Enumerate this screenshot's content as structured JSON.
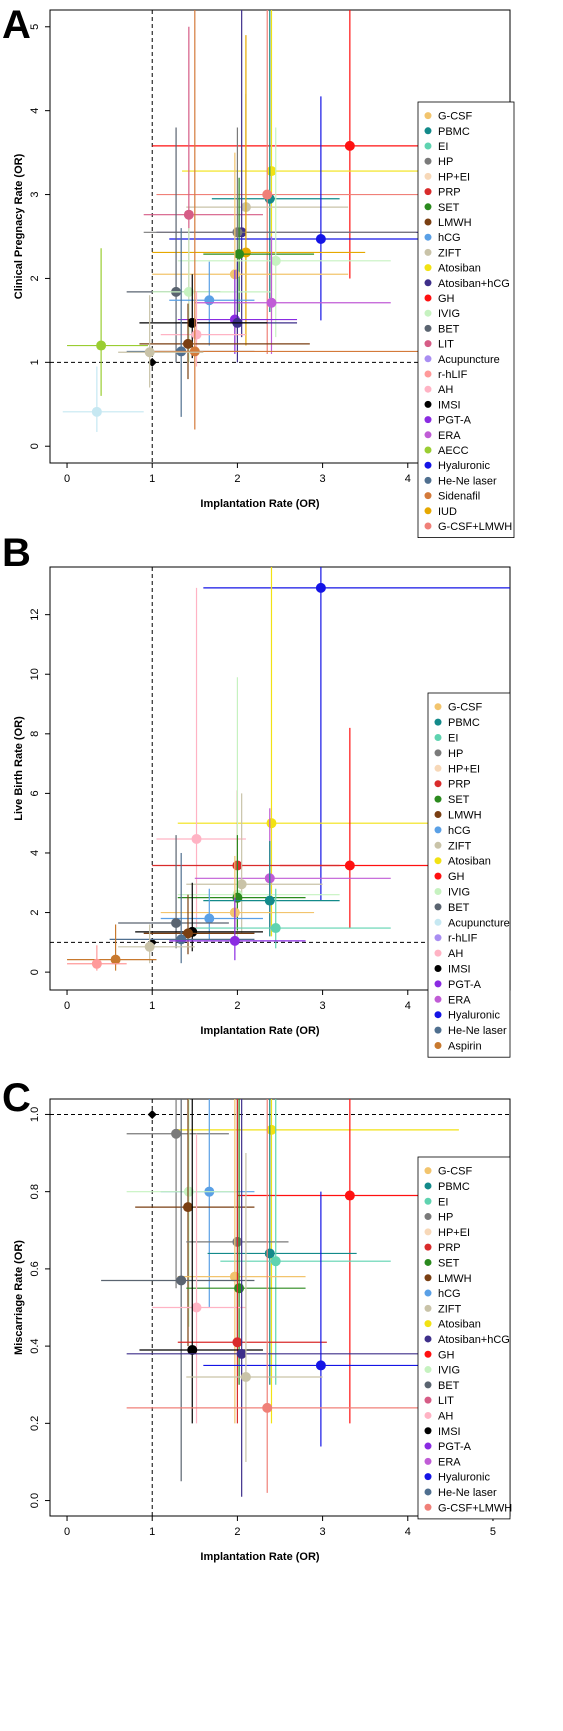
{
  "colors": {
    "G-CSF": "#f2c46d",
    "PBMC": "#138a8a",
    "EI": "#5fd3b0",
    "HP": "#7a7a7a",
    "HP+EI": "#f7d8b8",
    "PRP": "#d92b2b",
    "SET": "#2b8a1e",
    "LMWH": "#7a3f12",
    "hCG": "#5aa0e6",
    "ZIFT": "#c9c3a8",
    "Atosiban": "#f2e213",
    "Atosiban+hCG": "#3e2f8a",
    "GH": "#ff1010",
    "IVIG": "#c6f2c0",
    "BET": "#5a6470",
    "LIT": "#d65c86",
    "Acupuncture": "#c6e8f2",
    "Acupuncture-legend": "#a98ef2",
    "r-hLIF": "#ff9a9a",
    "r-hLIF-B": "#a98ef2",
    "AH": "#ffb3c4",
    "IMSI": "#000000",
    "PGT-A": "#8a2be2",
    "ERA": "#c05cd6",
    "AECC": "#9acd32",
    "Hyaluronic": "#1414e6",
    "He-Ne laser": "#4f6f8f",
    "Sidenafil": "#d47a3a",
    "IUD": "#e6a800",
    "G-CSF+LMWH": "#f08078",
    "Aspirin": "#c8792e",
    "Control": "#000000"
  },
  "chart_data": [
    {
      "type": "scatter",
      "panel_label": "A",
      "xlabel": "Implantation Rate (OR)",
      "ylabel": "Clinical Pregnacy Rate (OR)",
      "xlim": [
        -0.2,
        5.2
      ],
      "ylim": [
        -0.2,
        5.2
      ],
      "xticks": [
        "0",
        "1",
        "2",
        "3",
        "4",
        "5"
      ],
      "yticks": [
        "0",
        "1",
        "2",
        "3",
        "4",
        "5"
      ],
      "reference_lines": {
        "x": 1,
        "y": 1
      },
      "legend": [
        "G-CSF",
        "PBMC",
        "EI",
        "HP",
        "HP+EI",
        "PRP",
        "SET",
        "LMWH",
        "hCG",
        "ZIFT",
        "Atosiban",
        "Atosiban+hCG",
        "GH",
        "IVIG",
        "BET",
        "LIT",
        "Acupuncture",
        "r-hLIF",
        "AH",
        "IMSI",
        "PGT-A",
        "ERA",
        "AECC",
        "Hyaluronic",
        "He-Ne laser",
        "Sidenafil",
        "IUD",
        "G-CSF+LMWH"
      ],
      "legend_colors": [
        "G-CSF",
        "PBMC",
        "EI",
        "HP",
        "HP+EI",
        "PRP",
        "SET",
        "LMWH",
        "hCG",
        "ZIFT",
        "Atosiban",
        "Atosiban+hCG",
        "GH",
        "IVIG",
        "BET",
        "LIT",
        "Acupuncture-legend",
        "r-hLIF",
        "AH",
        "IMSI",
        "PGT-A",
        "ERA",
        "AECC",
        "Hyaluronic",
        "He-Ne laser",
        "Sidenafil",
        "IUD",
        "G-CSF+LMWH"
      ],
      "points": [
        {
          "name": "Control",
          "x": 1.0,
          "y": 1.0,
          "marker": "diamond"
        },
        {
          "name": "GH",
          "x": 3.32,
          "y": 3.58,
          "xlo": 1.0,
          "xhi": 5.2,
          "ylo": 2.0,
          "yhi": 5.2
        },
        {
          "name": "Atosiban",
          "x": 2.4,
          "y": 3.28,
          "xlo": 1.35,
          "xhi": 5.2,
          "ylo": 1.5,
          "yhi": 5.2
        },
        {
          "name": "PBMC",
          "x": 2.38,
          "y": 2.95,
          "xlo": 1.7,
          "xhi": 3.2,
          "ylo": 1.6,
          "yhi": 5.2
        },
        {
          "name": "G-CSF+LMWH",
          "x": 2.35,
          "y": 3.0,
          "xlo": 1.05,
          "xhi": 5.2,
          "ylo": 1.1,
          "yhi": 5.2
        },
        {
          "name": "ZIFT",
          "x": 2.1,
          "y": 2.85,
          "xlo": 1.4,
          "xhi": 3.3,
          "ylo": 1.5,
          "yhi": 4.2
        },
        {
          "name": "LIT",
          "x": 1.43,
          "y": 2.76,
          "xlo": 0.9,
          "xhi": 2.3,
          "ylo": 1.2,
          "yhi": 5.0
        },
        {
          "name": "Atosiban+hCG",
          "x": 2.05,
          "y": 2.55,
          "xlo": 1.05,
          "xhi": 5.2,
          "ylo": 1.3,
          "yhi": 5.2
        },
        {
          "name": "HP",
          "x": 2.0,
          "y": 2.55,
          "xlo": 0.9,
          "xhi": 4.1,
          "ylo": 1.3,
          "yhi": 3.8
        },
        {
          "name": "Hyaluronic",
          "x": 2.98,
          "y": 2.47,
          "xlo": 1.2,
          "xhi": 5.2,
          "ylo": 1.5,
          "yhi": 4.17
        },
        {
          "name": "IUD",
          "x": 2.1,
          "y": 2.31,
          "xlo": 1.0,
          "xhi": 3.5,
          "ylo": 1.2,
          "yhi": 4.9
        },
        {
          "name": "SET",
          "x": 2.02,
          "y": 2.29,
          "xlo": 1.6,
          "xhi": 2.9,
          "ylo": 1.6,
          "yhi": 3.2
        },
        {
          "name": "IVIG",
          "x": 2.45,
          "y": 2.21,
          "xlo": 1.3,
          "xhi": 3.8,
          "ylo": 1.3,
          "yhi": 3.8
        },
        {
          "name": "G-CSF",
          "x": 1.97,
          "y": 2.05,
          "xlo": 1.0,
          "xhi": 3.3,
          "ylo": 1.2,
          "yhi": 3.5
        },
        {
          "name": "BET",
          "x": 1.28,
          "y": 1.84,
          "xlo": 0.7,
          "xhi": 1.8,
          "ylo": 1.0,
          "yhi": 3.8
        },
        {
          "name": "IVIG",
          "x": 1.43,
          "y": 1.84,
          "xlo": 1.0,
          "xhi": 2.4,
          "ylo": 1.0,
          "yhi": 2.6
        },
        {
          "name": "hCG",
          "x": 1.67,
          "y": 1.74,
          "xlo": 1.2,
          "xhi": 2.2,
          "ylo": 1.2,
          "yhi": 2.2
        },
        {
          "name": "ERA",
          "x": 2.4,
          "y": 1.71,
          "xlo": 1.5,
          "xhi": 3.8,
          "ylo": 1.1,
          "yhi": 2.5
        },
        {
          "name": "PGT-A",
          "x": 1.97,
          "y": 1.51,
          "xlo": 1.3,
          "xhi": 2.7,
          "ylo": 1.1,
          "yhi": 2.1
        },
        {
          "name": "Atosiban+hCG",
          "x": 2.0,
          "y": 1.47,
          "xlo": 1.3,
          "xhi": 2.7,
          "ylo": 1.0,
          "yhi": 2.2
        },
        {
          "name": "IMSI",
          "x": 1.47,
          "y": 1.47,
          "xlo": 0.85,
          "xhi": 2.35,
          "ylo": 1.05,
          "yhi": 2.05
        },
        {
          "name": "AH",
          "x": 1.52,
          "y": 1.33,
          "xlo": 1.1,
          "xhi": 2.1,
          "ylo": 0.95,
          "yhi": 1.85
        },
        {
          "name": "LMWH",
          "x": 1.42,
          "y": 1.22,
          "xlo": 0.85,
          "xhi": 2.85,
          "ylo": 0.8,
          "yhi": 1.7
        },
        {
          "name": "AECC",
          "x": 0.4,
          "y": 1.2,
          "xlo": 0.0,
          "xhi": 0.95,
          "ylo": 0.6,
          "yhi": 2.36
        },
        {
          "name": "He-Ne laser",
          "x": 1.34,
          "y": 1.13,
          "xlo": 0.7,
          "xhi": 2.2,
          "ylo": 0.35,
          "yhi": 2.6
        },
        {
          "name": "Sidenafil",
          "x": 1.5,
          "y": 1.13,
          "xlo": 0.95,
          "xhi": 5.2,
          "ylo": 0.2,
          "yhi": 5.2
        },
        {
          "name": "ZIFT",
          "x": 0.97,
          "y": 1.12,
          "xlo": 0.6,
          "xhi": 1.6,
          "ylo": 0.7,
          "yhi": 1.8
        },
        {
          "name": "Acupuncture",
          "x": 0.35,
          "y": 0.41,
          "xlo": -0.05,
          "xhi": 0.9,
          "ylo": 0.17,
          "yhi": 0.95
        }
      ]
    },
    {
      "type": "scatter",
      "panel_label": "B",
      "xlabel": "Implantation Rate (OR)",
      "ylabel": "Live Birth Rate (OR)",
      "xlim": [
        -0.2,
        5.2
      ],
      "ylim": [
        -0.6,
        13.6
      ],
      "xticks": [
        "0",
        "1",
        "2",
        "3",
        "4",
        "5"
      ],
      "yticks": [
        "0",
        "2",
        "4",
        "6",
        "8",
        "10",
        "12"
      ],
      "reference_lines": {
        "x": 1,
        "y": 1
      },
      "legend": [
        "G-CSF",
        "PBMC",
        "EI",
        "HP",
        "HP+EI",
        "PRP",
        "SET",
        "LMWH",
        "hCG",
        "ZIFT",
        "Atosiban",
        "GH",
        "IVIG",
        "BET",
        "Acupuncture",
        "r-hLIF",
        "AH",
        "IMSI",
        "PGT-A",
        "ERA",
        "Hyaluronic",
        "He-Ne laser",
        "Aspirin"
      ],
      "legend_colors": [
        "G-CSF",
        "PBMC",
        "EI",
        "HP",
        "HP+EI",
        "PRP",
        "SET",
        "LMWH",
        "hCG",
        "ZIFT",
        "Atosiban",
        "GH",
        "IVIG",
        "BET",
        "Acupuncture",
        "r-hLIF-B",
        "AH",
        "IMSI",
        "PGT-A",
        "ERA",
        "Hyaluronic",
        "He-Ne laser",
        "Aspirin"
      ],
      "points": [
        {
          "name": "Control",
          "x": 1.0,
          "y": 1.0,
          "marker": "diamond"
        },
        {
          "name": "Hyaluronic",
          "x": 2.98,
          "y": 12.9,
          "xlo": 1.6,
          "xhi": 5.2,
          "ylo": 2.4,
          "yhi": 13.6
        },
        {
          "name": "Atosiban",
          "x": 2.4,
          "y": 5.0,
          "xlo": 1.3,
          "xhi": 5.2,
          "ylo": 1.2,
          "yhi": 13.6
        },
        {
          "name": "AH",
          "x": 1.52,
          "y": 4.47,
          "xlo": 1.05,
          "xhi": 2.1,
          "ylo": 1.5,
          "yhi": 12.9
        },
        {
          "name": "GH",
          "x": 3.32,
          "y": 3.58,
          "xlo": 2.5,
          "xhi": 5.2,
          "ylo": 1.5,
          "yhi": 8.2
        },
        {
          "name": "PRP",
          "x": 2.0,
          "y": 3.58,
          "xlo": 1.0,
          "xhi": 3.2,
          "ylo": 1.5,
          "yhi": 6.1
        },
        {
          "name": "ERA",
          "x": 2.38,
          "y": 3.15,
          "xlo": 1.5,
          "xhi": 3.8,
          "ylo": 1.5,
          "yhi": 5.5
        },
        {
          "name": "ZIFT",
          "x": 2.05,
          "y": 2.95,
          "xlo": 1.4,
          "xhi": 3.0,
          "ylo": 1.3,
          "yhi": 6.0
        },
        {
          "name": "IVIG",
          "x": 2.0,
          "y": 2.6,
          "xlo": 1.3,
          "xhi": 3.2,
          "ylo": 1.0,
          "yhi": 9.9
        },
        {
          "name": "SET",
          "x": 2.0,
          "y": 2.5,
          "xlo": 1.3,
          "xhi": 2.8,
          "ylo": 1.4,
          "yhi": 4.6
        },
        {
          "name": "PBMC",
          "x": 2.38,
          "y": 2.4,
          "xlo": 1.6,
          "xhi": 3.2,
          "ylo": 1.2,
          "yhi": 4.4
        },
        {
          "name": "G-CSF",
          "x": 1.97,
          "y": 2.0,
          "xlo": 1.1,
          "xhi": 2.9,
          "ylo": 1.0,
          "yhi": 3.9
        },
        {
          "name": "hCG",
          "x": 1.67,
          "y": 1.8,
          "xlo": 1.1,
          "xhi": 2.3,
          "ylo": 1.1,
          "yhi": 2.8
        },
        {
          "name": "BET",
          "x": 1.28,
          "y": 1.65,
          "xlo": 0.6,
          "xhi": 1.9,
          "ylo": 0.8,
          "yhi": 4.6
        },
        {
          "name": "EI",
          "x": 2.45,
          "y": 1.48,
          "xlo": 1.5,
          "xhi": 3.8,
          "ylo": 0.8,
          "yhi": 2.8
        },
        {
          "name": "IMSI",
          "x": 1.47,
          "y": 1.35,
          "xlo": 0.8,
          "xhi": 2.3,
          "ylo": 0.7,
          "yhi": 3.0
        },
        {
          "name": "LMWH",
          "x": 1.42,
          "y": 1.3,
          "xlo": 0.9,
          "xhi": 2.2,
          "ylo": 0.6,
          "yhi": 2.6
        },
        {
          "name": "He-Ne laser",
          "x": 1.34,
          "y": 1.1,
          "xlo": 0.5,
          "xhi": 2.2,
          "ylo": 0.3,
          "yhi": 4.0
        },
        {
          "name": "PGT-A",
          "x": 1.97,
          "y": 1.05,
          "xlo": 1.2,
          "xhi": 2.8,
          "ylo": 0.4,
          "yhi": 2.5
        },
        {
          "name": "ZIFT",
          "x": 0.97,
          "y": 0.85,
          "xlo": 0.6,
          "xhi": 1.5,
          "ylo": 0.3,
          "yhi": 1.6
        },
        {
          "name": "Aspirin",
          "x": 0.57,
          "y": 0.42,
          "xlo": 0.0,
          "xhi": 1.05,
          "ylo": 0.05,
          "yhi": 1.6
        },
        {
          "name": "r-hLIF",
          "x": 0.35,
          "y": 0.28,
          "xlo": 0.0,
          "xhi": 0.7,
          "ylo": 0.05,
          "yhi": 0.9
        }
      ]
    },
    {
      "type": "scatter",
      "panel_label": "C",
      "xlabel": "Implantation Rate (OR)",
      "ylabel": "Miscarriage Rate (OR)",
      "xlim": [
        -0.2,
        5.2
      ],
      "ylim": [
        -0.04,
        1.04
      ],
      "xticks": [
        "0",
        "1",
        "2",
        "3",
        "4",
        "5"
      ],
      "yticks": [
        "0.0",
        "0.2",
        "0.4",
        "0.6",
        "0.8",
        "1.0"
      ],
      "reference_lines": {
        "x": 1,
        "y": 1
      },
      "legend": [
        "G-CSF",
        "PBMC",
        "EI",
        "HP",
        "HP+EI",
        "PRP",
        "SET",
        "LMWH",
        "hCG",
        "ZIFT",
        "Atosiban",
        "Atosiban+hCG",
        "GH",
        "IVIG",
        "BET",
        "LIT",
        "AH",
        "IMSI",
        "PGT-A",
        "ERA",
        "Hyaluronic",
        "He-Ne laser",
        "G-CSF+LMWH"
      ],
      "legend_colors": [
        "G-CSF",
        "PBMC",
        "EI",
        "HP",
        "HP+EI",
        "PRP",
        "SET",
        "LMWH",
        "hCG",
        "ZIFT",
        "Atosiban",
        "Atosiban+hCG",
        "GH",
        "IVIG",
        "BET",
        "LIT",
        "AH",
        "IMSI",
        "PGT-A",
        "ERA",
        "Hyaluronic",
        "He-Ne laser",
        "G-CSF+LMWH"
      ],
      "points": [
        {
          "name": "Control",
          "x": 1.0,
          "y": 1.0,
          "marker": "diamond"
        },
        {
          "name": "Atosiban",
          "x": 2.4,
          "y": 0.96,
          "xlo": 1.3,
          "xhi": 4.6,
          "ylo": 0.2,
          "yhi": 1.04
        },
        {
          "name": "HP",
          "x": 1.28,
          "y": 0.95,
          "xlo": 0.7,
          "xhi": 1.9,
          "ylo": 0.55,
          "yhi": 1.04
        },
        {
          "name": "hCG",
          "x": 1.67,
          "y": 0.8,
          "xlo": 1.1,
          "xhi": 2.2,
          "ylo": 0.5,
          "yhi": 1.04
        },
        {
          "name": "IVIG",
          "x": 1.43,
          "y": 0.8,
          "xlo": 0.7,
          "xhi": 2.0,
          "ylo": 0.45,
          "yhi": 1.04
        },
        {
          "name": "GH",
          "x": 3.32,
          "y": 0.79,
          "xlo": 2.0,
          "xhi": 5.2,
          "ylo": 0.2,
          "yhi": 1.04
        },
        {
          "name": "LMWH",
          "x": 1.42,
          "y": 0.76,
          "xlo": 0.8,
          "xhi": 2.2,
          "ylo": 0.4,
          "yhi": 1.04
        },
        {
          "name": "HP",
          "x": 2.0,
          "y": 0.67,
          "xlo": 1.4,
          "xhi": 2.6,
          "ylo": 0.4,
          "yhi": 1.04
        },
        {
          "name": "PBMC",
          "x": 2.38,
          "y": 0.64,
          "xlo": 1.65,
          "xhi": 3.4,
          "ylo": 0.3,
          "yhi": 1.04
        },
        {
          "name": "EI",
          "x": 2.45,
          "y": 0.62,
          "xlo": 1.8,
          "xhi": 3.8,
          "ylo": 0.3,
          "yhi": 1.04
        },
        {
          "name": "G-CSF",
          "x": 1.97,
          "y": 0.58,
          "xlo": 1.3,
          "xhi": 2.8,
          "ylo": 0.2,
          "yhi": 1.04
        },
        {
          "name": "BET",
          "x": 1.34,
          "y": 0.57,
          "xlo": 0.4,
          "xhi": 2.2,
          "ylo": 0.05,
          "yhi": 1.04
        },
        {
          "name": "SET",
          "x": 2.02,
          "y": 0.55,
          "xlo": 1.4,
          "xhi": 2.8,
          "ylo": 0.3,
          "yhi": 1.04
        },
        {
          "name": "AH",
          "x": 1.52,
          "y": 0.5,
          "xlo": 1.0,
          "xhi": 2.1,
          "ylo": 0.2,
          "yhi": 0.95
        },
        {
          "name": "PRP",
          "x": 2.0,
          "y": 0.41,
          "xlo": 1.3,
          "xhi": 3.05,
          "ylo": 0.2,
          "yhi": 1.04
        },
        {
          "name": "IMSI",
          "x": 1.47,
          "y": 0.39,
          "xlo": 0.85,
          "xhi": 2.3,
          "ylo": 0.2,
          "yhi": 1.04
        },
        {
          "name": "Atosiban+hCG",
          "x": 2.05,
          "y": 0.38,
          "xlo": 0.7,
          "xhi": 5.2,
          "ylo": 0.01,
          "yhi": 1.04
        },
        {
          "name": "Hyaluronic",
          "x": 2.98,
          "y": 0.35,
          "xlo": 1.6,
          "xhi": 5.2,
          "ylo": 0.14,
          "yhi": 0.8
        },
        {
          "name": "ZIFT",
          "x": 2.1,
          "y": 0.32,
          "xlo": 1.4,
          "xhi": 3.0,
          "ylo": 0.1,
          "yhi": 0.9
        },
        {
          "name": "G-CSF+LMWH",
          "x": 2.35,
          "y": 0.24,
          "xlo": 0.7,
          "xhi": 5.2,
          "ylo": 0.02,
          "yhi": 1.04
        }
      ]
    }
  ]
}
